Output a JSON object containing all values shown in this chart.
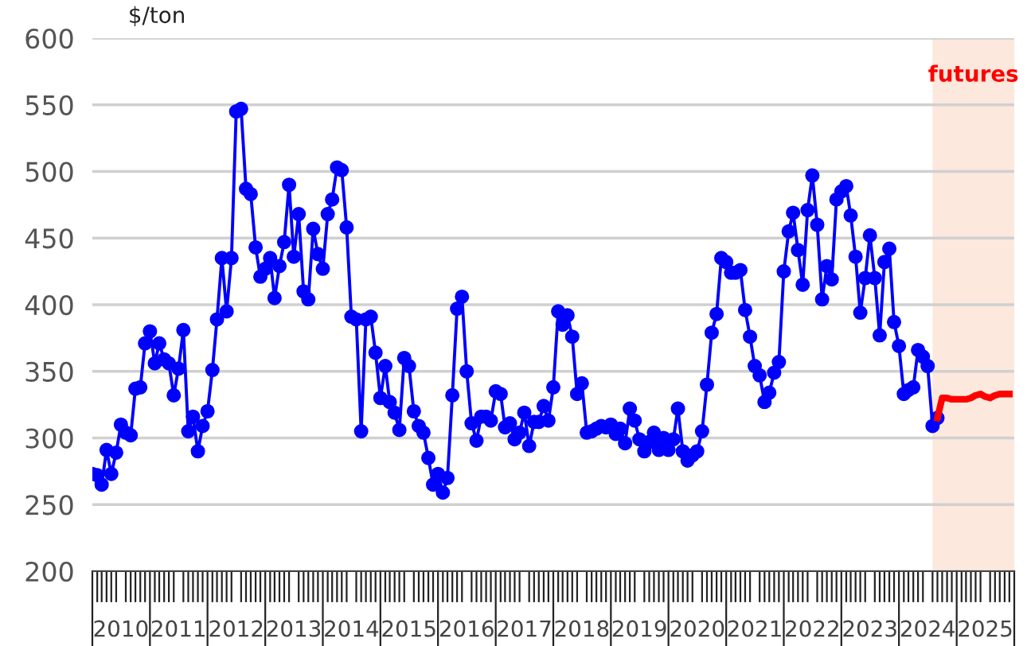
{
  "chart_data": {
    "type": "line",
    "ylabel": "$/ton",
    "xlim": [
      "2010-01",
      "2026-01"
    ],
    "xticks": [
      {
        "value": "2010-07",
        "label": "2010"
      },
      {
        "value": "2011-07",
        "label": "2011"
      },
      {
        "value": "2012-07",
        "label": "2012"
      },
      {
        "value": "2013-07",
        "label": "2013"
      },
      {
        "value": "2014-07",
        "label": "2014"
      },
      {
        "value": "2015-07",
        "label": "2015"
      },
      {
        "value": "2016-07",
        "label": "2016"
      },
      {
        "value": "2017-07",
        "label": "2017"
      },
      {
        "value": "2018-07",
        "label": "2018"
      },
      {
        "value": "2019-07",
        "label": "2019"
      },
      {
        "value": "2020-07",
        "label": "2020"
      },
      {
        "value": "2021-07",
        "label": "2021"
      },
      {
        "value": "2022-07",
        "label": "2022"
      },
      {
        "value": "2023-07",
        "label": "2023"
      },
      {
        "value": "2024-07",
        "label": "2024"
      },
      {
        "value": "2025-07",
        "label": "2025"
      }
    ],
    "ylim": [
      200,
      600
    ],
    "yticks": [
      200,
      250,
      300,
      350,
      400,
      450,
      500,
      550,
      600
    ],
    "grid": "y",
    "legend": false,
    "bands": [
      {
        "axis": "x",
        "from": "2024-08",
        "to": "2026-01",
        "label": "futures",
        "color": "#fce8dc"
      }
    ],
    "series": [
      {
        "color": "#0000ff",
        "marker": "circle",
        "line_style": "solid",
        "x": [
          "2010-01",
          "2010-02",
          "2010-03",
          "2010-04",
          "2010-05",
          "2010-06",
          "2010-07",
          "2010-08",
          "2010-09",
          "2010-10",
          "2010-11",
          "2010-12",
          "2011-01",
          "2011-02",
          "2011-03",
          "2011-04",
          "2011-05",
          "2011-06",
          "2011-07",
          "2011-08",
          "2011-09",
          "2011-10",
          "2011-11",
          "2011-12",
          "2012-01",
          "2012-02",
          "2012-03",
          "2012-04",
          "2012-05",
          "2012-06",
          "2012-07",
          "2012-08",
          "2012-09",
          "2012-10",
          "2012-11",
          "2012-12",
          "2013-01",
          "2013-02",
          "2013-03",
          "2013-04",
          "2013-05",
          "2013-06",
          "2013-07",
          "2013-08",
          "2013-09",
          "2013-10",
          "2013-11",
          "2013-12",
          "2014-01",
          "2014-02",
          "2014-03",
          "2014-04",
          "2014-05",
          "2014-06",
          "2014-07",
          "2014-08",
          "2014-09",
          "2014-10",
          "2014-11",
          "2014-12",
          "2015-01",
          "2015-02",
          "2015-03",
          "2015-04",
          "2015-05",
          "2015-06",
          "2015-07",
          "2015-08",
          "2015-09",
          "2015-10",
          "2015-11",
          "2015-12",
          "2016-01",
          "2016-02",
          "2016-03",
          "2016-04",
          "2016-05",
          "2016-06",
          "2016-07",
          "2016-08",
          "2016-09",
          "2016-10",
          "2016-11",
          "2016-12",
          "2017-01",
          "2017-02",
          "2017-03",
          "2017-04",
          "2017-05",
          "2017-06",
          "2017-07",
          "2017-08",
          "2017-09",
          "2017-10",
          "2017-11",
          "2017-12",
          "2018-01",
          "2018-02",
          "2018-03",
          "2018-04",
          "2018-05",
          "2018-06",
          "2018-07",
          "2018-08",
          "2018-09",
          "2018-10",
          "2018-11",
          "2018-12",
          "2019-01",
          "2019-02",
          "2019-03",
          "2019-04",
          "2019-05",
          "2019-06",
          "2019-07",
          "2019-08",
          "2019-09",
          "2019-10",
          "2019-11",
          "2019-12",
          "2020-01",
          "2020-02",
          "2020-03",
          "2020-04",
          "2020-05",
          "2020-06",
          "2020-07",
          "2020-08",
          "2020-09",
          "2020-10",
          "2020-11",
          "2020-12",
          "2021-01",
          "2021-02",
          "2021-03",
          "2021-04",
          "2021-05",
          "2021-06",
          "2021-07",
          "2021-08",
          "2021-09",
          "2021-10",
          "2021-11",
          "2021-12",
          "2022-01",
          "2022-02",
          "2022-03",
          "2022-04",
          "2022-05",
          "2022-06",
          "2022-07",
          "2022-08",
          "2022-09",
          "2022-10",
          "2022-11",
          "2022-12",
          "2023-01",
          "2023-02",
          "2023-03",
          "2023-04",
          "2023-05",
          "2023-06",
          "2023-07",
          "2023-08",
          "2023-09",
          "2023-10",
          "2023-11",
          "2023-12",
          "2024-01",
          "2024-02",
          "2024-03",
          "2024-04",
          "2024-05",
          "2024-06",
          "2024-07",
          "2024-08",
          "2024-09"
        ],
        "values": [
          273,
          272,
          265,
          291,
          273,
          289,
          310,
          304,
          302,
          337,
          338,
          371,
          380,
          356,
          371,
          359,
          356,
          332,
          352,
          381,
          305,
          316,
          290,
          309,
          320,
          351,
          389,
          435,
          395,
          435,
          545,
          547,
          487,
          483,
          443,
          421,
          427,
          435,
          405,
          429,
          447,
          490,
          436,
          468,
          410,
          404,
          457,
          438,
          427,
          468,
          479,
          503,
          501,
          458,
          391,
          389,
          305,
          389,
          391,
          364,
          330,
          354,
          327,
          319,
          306,
          360,
          354,
          320,
          309,
          304,
          285,
          265,
          273,
          259,
          270,
          332,
          397,
          406,
          350,
          311,
          298,
          316,
          316,
          313,
          335,
          333,
          308,
          311,
          299,
          304,
          319,
          294,
          312,
          312,
          324,
          313,
          338,
          395,
          385,
          392,
          376,
          333,
          341,
          304,
          305,
          307,
          309,
          308,
          310,
          303,
          307,
          296,
          322,
          313,
          299,
          290,
          297,
          304,
          291,
          300,
          291,
          299,
          322,
          290,
          283,
          287,
          290,
          305,
          340,
          379,
          393,
          435,
          432,
          424,
          424,
          426,
          396,
          376,
          354,
          347,
          327,
          334,
          349,
          357,
          425,
          455,
          469,
          441,
          415,
          471,
          497,
          460,
          404,
          429,
          419,
          479,
          485,
          489,
          467,
          436,
          394,
          420,
          452,
          420,
          377,
          432,
          442,
          387,
          369,
          333,
          336,
          338,
          366,
          361,
          354,
          309,
          315
        ]
      },
      {
        "color": "#ff0000",
        "marker": "none",
        "line_style": "solid",
        "x": [
          "2024-09",
          "2024-10",
          "2024-11",
          "2024-12",
          "2025-01",
          "2025-02",
          "2025-03",
          "2025-04",
          "2025-05",
          "2025-06",
          "2025-07",
          "2025-08",
          "2025-09",
          "2025-10",
          "2025-11",
          "2025-12"
        ],
        "values": [
          315,
          330,
          330,
          329,
          329,
          329,
          329,
          330,
          332,
          333,
          331,
          330,
          332,
          333,
          333,
          333
        ]
      }
    ]
  }
}
